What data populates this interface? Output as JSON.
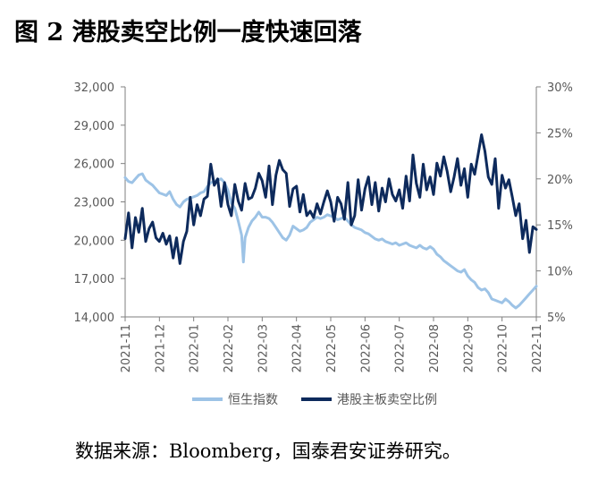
{
  "figure": {
    "title": "图 2 港股卖空比例一度快速回落",
    "source": "数据来源：Bloomberg，国泰君安证券研究。"
  },
  "chart_data": {
    "type": "line",
    "title": "港股卖空比例一度快速回落",
    "xlabel": "",
    "ylabel_left": "",
    "ylabel_right": "",
    "grid": false,
    "legend_position": "bottom",
    "x_categories": [
      "2021-11",
      "2021-12",
      "2022-01",
      "2022-02",
      "2022-03",
      "2022-04",
      "2022-05",
      "2022-06",
      "2022-07",
      "2022-08",
      "2022-09",
      "2022-10",
      "2022-11"
    ],
    "y_left": {
      "min": 14000,
      "max": 32000,
      "ticks": [
        14000,
        17000,
        20000,
        23000,
        26000,
        29000,
        32000
      ],
      "tick_labels": [
        "14,000",
        "17,000",
        "20,000",
        "23,000",
        "26,000",
        "29,000",
        "32,000"
      ]
    },
    "y_right": {
      "min": 5,
      "max": 30,
      "ticks": [
        5,
        10,
        15,
        20,
        25,
        30
      ],
      "tick_labels": [
        "5%",
        "10%",
        "15%",
        "20%",
        "25%",
        "30%"
      ]
    },
    "series": [
      {
        "name": "恒生指数",
        "axis": "left",
        "color": "#9dc3e6",
        "x": [
          0,
          0.1,
          0.2,
          0.3,
          0.4,
          0.5,
          0.6,
          0.7,
          0.8,
          0.9,
          1.0,
          1.1,
          1.2,
          1.3,
          1.4,
          1.5,
          1.6,
          1.7,
          1.8,
          1.9,
          2.0,
          2.1,
          2.2,
          2.3,
          2.4,
          2.5,
          2.6,
          2.7,
          2.8,
          2.9,
          3.0,
          3.1,
          3.2,
          3.3,
          3.4,
          3.45,
          3.5,
          3.6,
          3.7,
          3.8,
          3.9,
          4.0,
          4.1,
          4.2,
          4.3,
          4.4,
          4.5,
          4.6,
          4.7,
          4.8,
          4.9,
          5.0,
          5.1,
          5.2,
          5.3,
          5.4,
          5.5,
          5.6,
          5.7,
          5.8,
          5.9,
          6.0,
          6.1,
          6.2,
          6.3,
          6.4,
          6.5,
          6.6,
          6.7,
          6.8,
          6.9,
          7.0,
          7.1,
          7.2,
          7.3,
          7.4,
          7.5,
          7.6,
          7.7,
          7.8,
          7.9,
          8.0,
          8.1,
          8.2,
          8.3,
          8.4,
          8.5,
          8.6,
          8.7,
          8.8,
          8.9,
          9.0,
          9.1,
          9.2,
          9.3,
          9.4,
          9.5,
          9.6,
          9.7,
          9.8,
          9.9,
          10.0,
          10.1,
          10.2,
          10.3,
          10.4,
          10.5,
          10.6,
          10.7,
          10.8,
          10.9,
          11.0,
          11.1,
          11.2,
          11.3,
          11.4,
          11.5,
          11.6,
          11.7,
          11.8,
          11.9,
          12.0
        ],
        "values": [
          24900,
          24600,
          24500,
          24800,
          25100,
          25200,
          24700,
          24500,
          24300,
          24000,
          23700,
          23600,
          23500,
          23800,
          23200,
          22800,
          22600,
          23000,
          23200,
          23300,
          23400,
          23500,
          23700,
          23800,
          24200,
          24500,
          24600,
          24700,
          24800,
          24500,
          23900,
          22900,
          22500,
          21500,
          20400,
          18300,
          20200,
          21000,
          21500,
          21800,
          22200,
          21800,
          21800,
          21700,
          21400,
          21000,
          20600,
          20200,
          20000,
          20400,
          21100,
          20900,
          20700,
          20800,
          21000,
          21400,
          21600,
          21800,
          21700,
          21800,
          22000,
          21900,
          21800,
          21600,
          21700,
          21800,
          21500,
          21200,
          21000,
          20900,
          20800,
          20600,
          20500,
          20300,
          20100,
          20000,
          20100,
          19900,
          19800,
          19700,
          19800,
          19600,
          19700,
          19800,
          19600,
          19500,
          19400,
          19600,
          19400,
          19300,
          19500,
          19300,
          18900,
          18700,
          18400,
          18200,
          18000,
          17800,
          17600,
          17500,
          17700,
          17200,
          16900,
          16700,
          16300,
          16100,
          16200,
          15900,
          15400,
          15300,
          15200,
          15100,
          15400,
          15200,
          14900,
          14700,
          14900,
          15200,
          15500,
          15800,
          16100,
          16400
        ]
      },
      {
        "name": "港股主板卖空比例",
        "axis": "right",
        "color": "#0d2a5c",
        "x": [
          0,
          0.1,
          0.2,
          0.3,
          0.4,
          0.5,
          0.6,
          0.7,
          0.8,
          0.9,
          1.0,
          1.1,
          1.2,
          1.3,
          1.4,
          1.5,
          1.6,
          1.7,
          1.8,
          1.9,
          2.0,
          2.1,
          2.2,
          2.3,
          2.4,
          2.5,
          2.6,
          2.7,
          2.8,
          2.9,
          3.0,
          3.1,
          3.2,
          3.3,
          3.4,
          3.5,
          3.6,
          3.7,
          3.8,
          3.9,
          4.0,
          4.1,
          4.2,
          4.3,
          4.4,
          4.5,
          4.6,
          4.7,
          4.8,
          4.9,
          5.0,
          5.1,
          5.2,
          5.3,
          5.4,
          5.5,
          5.6,
          5.7,
          5.8,
          5.9,
          6.0,
          6.1,
          6.2,
          6.3,
          6.4,
          6.5,
          6.6,
          6.7,
          6.8,
          6.9,
          7.0,
          7.1,
          7.2,
          7.3,
          7.4,
          7.5,
          7.6,
          7.7,
          7.8,
          7.9,
          8.0,
          8.1,
          8.2,
          8.3,
          8.4,
          8.5,
          8.6,
          8.7,
          8.8,
          8.9,
          9.0,
          9.1,
          9.2,
          9.3,
          9.4,
          9.5,
          9.6,
          9.7,
          9.8,
          9.9,
          10.0,
          10.1,
          10.2,
          10.3,
          10.4,
          10.5,
          10.6,
          10.7,
          10.8,
          10.9,
          11.0,
          11.1,
          11.2,
          11.3,
          11.4,
          11.5,
          11.6,
          11.7,
          11.8,
          11.9,
          12.0
        ],
        "values": [
          13.5,
          16.3,
          12.5,
          15.8,
          14.2,
          16.8,
          13.2,
          14.6,
          15.3,
          13.6,
          13.2,
          14.1,
          12.9,
          13.8,
          11.4,
          13.6,
          10.8,
          13.2,
          14.3,
          18.0,
          15.0,
          17.2,
          16.0,
          17.8,
          18.1,
          21.6,
          19.3,
          20.0,
          17.0,
          19.6,
          17.2,
          16.0,
          19.4,
          17.6,
          16.6,
          19.5,
          17.8,
          18.0,
          19.0,
          20.6,
          19.8,
          18.0,
          21.4,
          17.2,
          20.4,
          22.0,
          21.0,
          20.6,
          17.0,
          18.9,
          19.2,
          16.4,
          18.3,
          16.0,
          16.5,
          15.8,
          17.3,
          16.2,
          17.5,
          18.7,
          17.5,
          15.4,
          18.0,
          17.3,
          15.6,
          19.6,
          15.0,
          16.0,
          19.9,
          16.6,
          18.9,
          20.2,
          17.2,
          19.6,
          16.5,
          19.0,
          17.5,
          20.0,
          18.3,
          17.6,
          18.8,
          16.8,
          20.3,
          17.6,
          22.6,
          19.5,
          18.0,
          21.6,
          18.8,
          20.2,
          18.3,
          21.7,
          20.3,
          22.4,
          20.8,
          18.6,
          20.2,
          22.2,
          19.3,
          21.1,
          18.0,
          21.6,
          20.5,
          22.6,
          24.8,
          23.0,
          20.2,
          19.4,
          22.2,
          16.8,
          20.4,
          19.0,
          19.9,
          18.0,
          16.0,
          17.3,
          13.5,
          15.5,
          12.0,
          14.8,
          14.5
        ]
      }
    ],
    "legend": [
      "恒生指数",
      "港股主板卖空比例"
    ]
  }
}
